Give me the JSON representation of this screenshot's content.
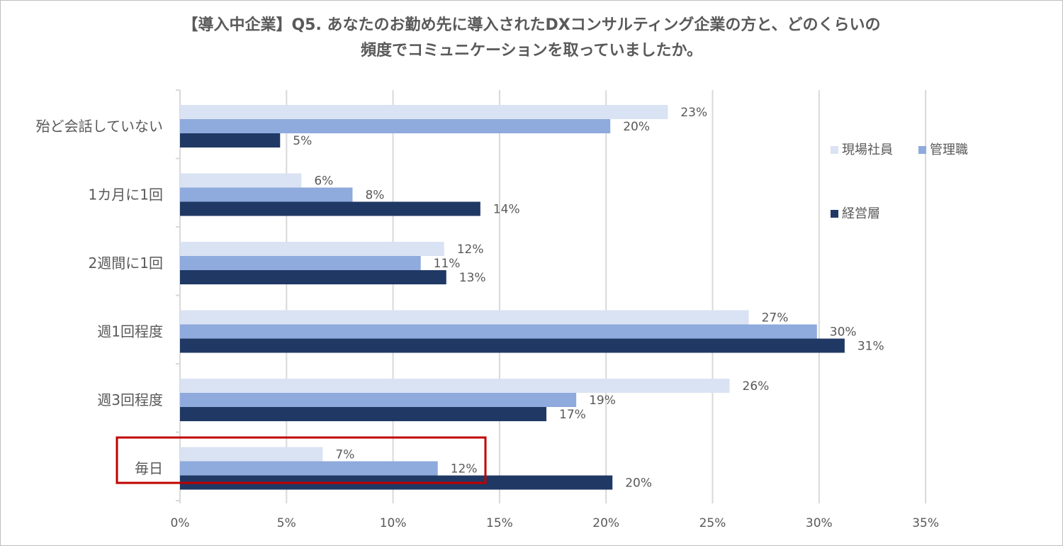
{
  "chart_data": {
    "type": "bar",
    "orientation": "horizontal",
    "title_line1": "【導入中企業】Q5. あなたのお勤め先に導入されたDXコンサルティング企業の方と、どのくらいの",
    "title_line2": "頻度でコミュニケーションを取っていましたか。",
    "categories": [
      "殆ど会話していない",
      "1カ月に1回",
      "2週間に1回",
      "週1回程度",
      "週3回程度",
      "毎日"
    ],
    "series": [
      {
        "name": "現場社員",
        "color": "#dae3f3",
        "values": [
          23,
          6,
          12,
          27,
          26,
          7
        ],
        "labels": [
          "23%",
          "6%",
          "12%",
          "27%",
          "26%",
          "7%"
        ],
        "plot_values": [
          22.9,
          5.7,
          12.4,
          26.7,
          25.8,
          6.7
        ]
      },
      {
        "name": "管理職",
        "color": "#8faadc",
        "values": [
          20,
          8,
          11,
          30,
          19,
          12
        ],
        "labels": [
          "20%",
          "8%",
          "11%",
          "30%",
          "19%",
          "12%"
        ],
        "plot_values": [
          20.2,
          8.1,
          11.3,
          29.9,
          18.6,
          12.1
        ]
      },
      {
        "name": "経営層",
        "color": "#203864",
        "values": [
          5,
          14,
          13,
          31,
          17,
          20
        ],
        "labels": [
          "5%",
          "14%",
          "13%",
          "31%",
          "17%",
          "20%"
        ],
        "plot_values": [
          4.7,
          14.1,
          12.5,
          31.2,
          17.2,
          20.3
        ]
      }
    ],
    "x_ticks": [
      "0%",
      "5%",
      "10%",
      "15%",
      "20%",
      "25%",
      "30%",
      "35%"
    ],
    "xlim": [
      0,
      35
    ],
    "grid": true,
    "legend_position": "right",
    "highlight": {
      "category": "毎日",
      "color": "#c00000"
    }
  }
}
